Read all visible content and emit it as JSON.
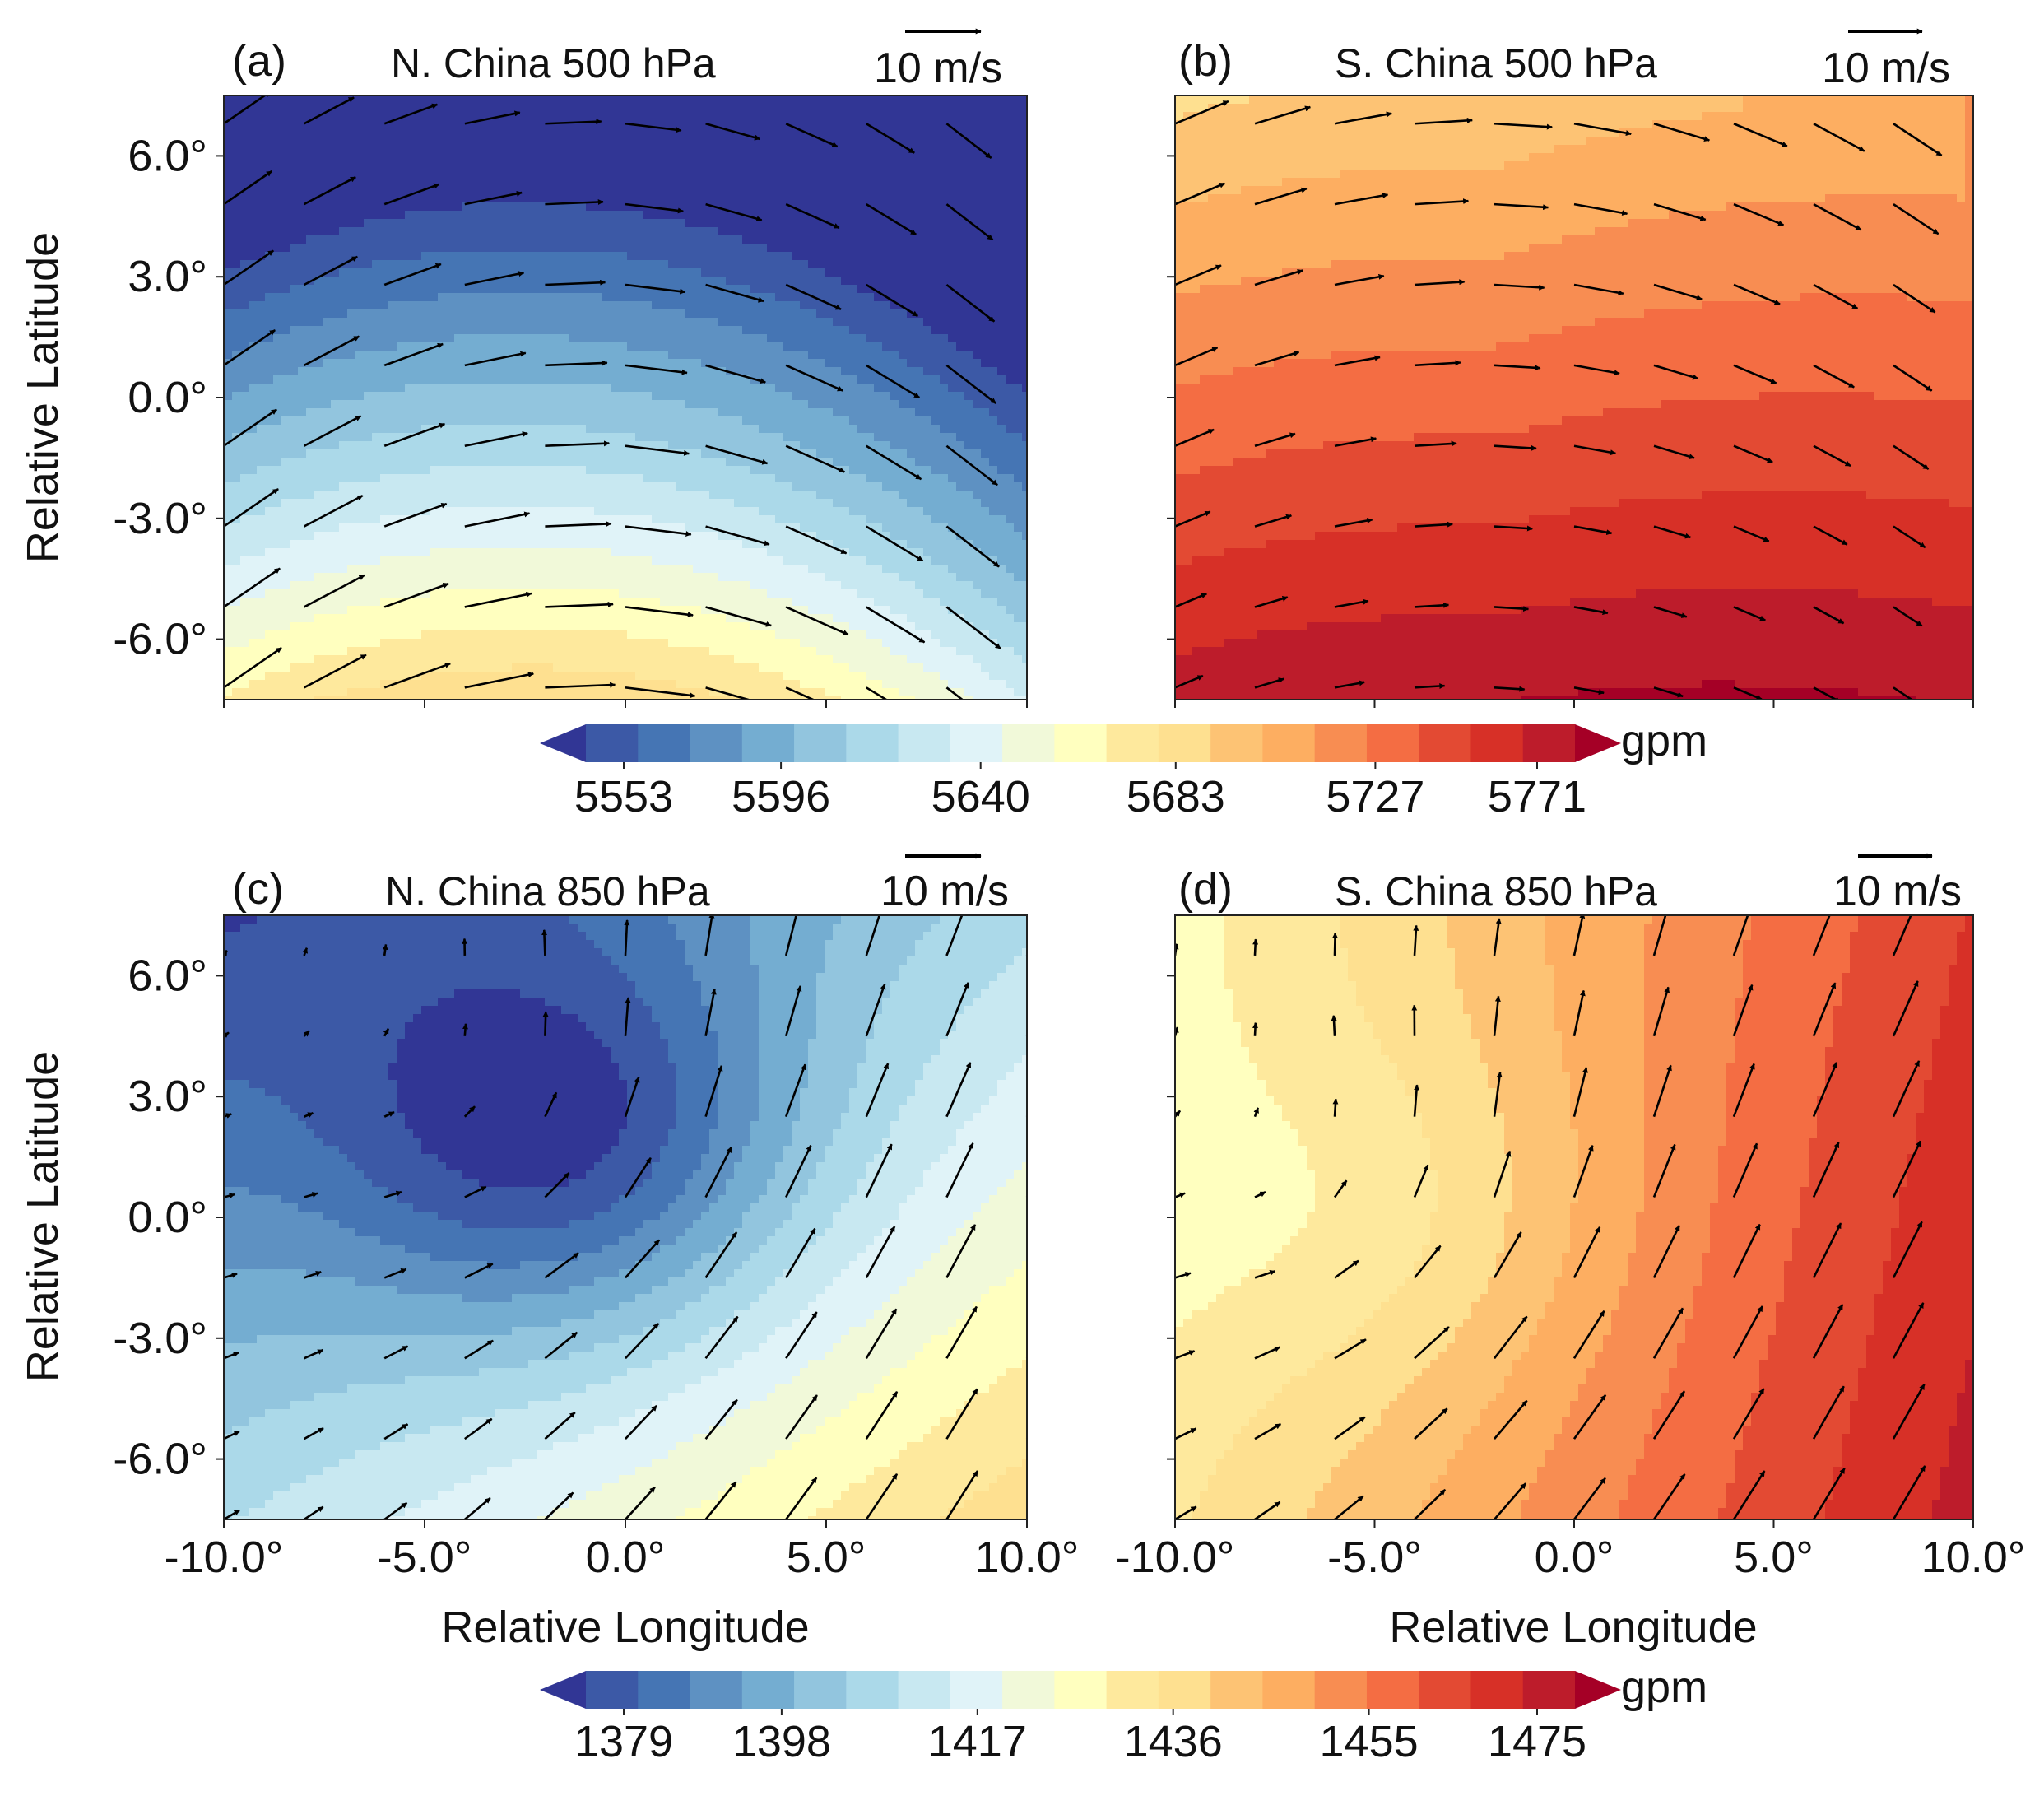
{
  "figure": {
    "ylabel": "Relative Latitude",
    "xlabel": "Relative Longitude",
    "degree_ticks_y": [
      "6.0°",
      "3.0°",
      "0.0°",
      "-3.0°",
      "-6.0°"
    ],
    "degree_ticks_x": [
      "-10.0°",
      "-5.0°",
      "0.0°",
      "5.0°",
      "10.0°"
    ]
  },
  "reference_vector": {
    "label": "10 m/s",
    "speed": 10
  },
  "colorbars": [
    {
      "id": "cb500",
      "unit": "gpm",
      "min": 5553,
      "max": 5771,
      "tick_values": [
        5553,
        5596,
        5640,
        5683,
        5727,
        5771
      ],
      "ticks": [
        "5553",
        "5596",
        "5640",
        "5683",
        "5727",
        "5771"
      ]
    },
    {
      "id": "cb850",
      "unit": "gpm",
      "min": 1379,
      "max": 1475,
      "tick_values": [
        1379,
        1398,
        1417,
        1436,
        1455,
        1475
      ],
      "ticks": [
        "1379",
        "1398",
        "1417",
        "1436",
        "1455",
        "1475"
      ]
    }
  ],
  "colormap": [
    "#313695",
    "#3c59a6",
    "#4575b4",
    "#5e91c2",
    "#74add1",
    "#92c5de",
    "#abd9e9",
    "#c8e8f1",
    "#e0f3f8",
    "#f1f9d9",
    "#ffffbf",
    "#fee99d",
    "#fee090",
    "#fdc374",
    "#fdae61",
    "#f88d52",
    "#f46d43",
    "#e34a33",
    "#d73027",
    "#bd1c2b",
    "#a50026"
  ],
  "chart_data": [
    {
      "id": "a",
      "type": "contourf+quiver",
      "letter": "(a)",
      "title": "N. China 500 hPa",
      "xlabel": "",
      "ylabel": "Relative Latitude",
      "xlim": [
        -10,
        10
      ],
      "ylim": [
        -7.5,
        7.5
      ],
      "xticks": [
        -10,
        -5,
        0,
        5,
        10
      ],
      "yticks": [
        6,
        3,
        0,
        -3,
        -6
      ],
      "colorbar": 0,
      "field": {
        "kind": "trough",
        "trough_lon": -1.5,
        "trough_lat": 6.5,
        "curvature": 0.03,
        "lat_scale": 15,
        "bottom_value": 5700,
        "top_value": 5551,
        "right_decrease": 18
      },
      "wind": {
        "lons": [
          -10,
          -8,
          -6,
          -4,
          -2,
          0,
          2,
          4,
          6,
          8,
          10
        ],
        "lats": [
          6.8,
          4.8,
          2.8,
          0.8,
          -1.2,
          -3.2,
          -5.2,
          -7.2
        ],
        "speed_top": 7.5,
        "speed_bottom": 9.5,
        "dir_factor": 0.45
      }
    },
    {
      "id": "b",
      "type": "contourf+quiver",
      "letter": "(b)",
      "title": "S. China 500 hPa",
      "xlabel": "",
      "ylabel": "",
      "xlim": [
        -10,
        10
      ],
      "ylim": [
        -7.5,
        7.5
      ],
      "xticks": [
        -10,
        -5,
        0,
        5,
        10
      ],
      "yticks": [
        6,
        3,
        0,
        -3,
        -6
      ],
      "colorbar": 0,
      "field": {
        "kind": "trough",
        "trough_lon": -3,
        "trough_lat": 7.5,
        "curvature": 0.02,
        "lat_scale": 15,
        "bottom_value": 5760,
        "top_value": 5690,
        "right_increase": 22
      },
      "wind": {
        "lons": [
          -10,
          -8,
          -6,
          -4,
          -2,
          0,
          2,
          4,
          6,
          8,
          10
        ],
        "lats": [
          6.8,
          4.8,
          2.8,
          0.8,
          -1.2,
          -3.2,
          -5.2,
          -7.2
        ],
        "speed_top": 8,
        "speed_bottom": 4,
        "dir_factor": 0.5
      }
    },
    {
      "id": "c",
      "type": "contourf+quiver",
      "letter": "(c)",
      "title": "N. China 850 hPa",
      "xlabel": "Relative Longitude",
      "ylabel": "Relative Latitude",
      "xlim": [
        -10,
        10
      ],
      "ylim": [
        -7.5,
        7.5
      ],
      "xticks": [
        -10,
        -5,
        0,
        5,
        10
      ],
      "yticks": [
        6,
        3,
        0,
        -3,
        -6
      ],
      "colorbar": 1,
      "field": {
        "kind": "low",
        "center_lon": -1.5,
        "center_lat": 1.8,
        "sx": 6,
        "sy": 5,
        "depth": 24,
        "base": 1405,
        "grad_lon": 1.3,
        "grad_lat": -1.8
      },
      "wind": {
        "lons": [
          -10,
          -8,
          -6,
          -4,
          -2,
          0,
          2,
          4,
          6,
          8,
          10
        ],
        "lats": [
          6.5,
          4.5,
          2.5,
          0.5,
          -1.5,
          -3.5,
          -5.5,
          -7.5
        ],
        "kind": "cyclone",
        "center_lon": -1.5,
        "center_lat": 1.8
      }
    },
    {
      "id": "d",
      "type": "contourf+quiver",
      "letter": "(d)",
      "title": "S. China 850 hPa",
      "xlabel": "Relative Longitude",
      "ylabel": "",
      "xlim": [
        -10,
        10
      ],
      "ylim": [
        -7.5,
        7.5
      ],
      "xticks": [
        -10,
        -5,
        0,
        5,
        10
      ],
      "yticks": [
        6,
        3,
        0,
        -3,
        -6
      ],
      "colorbar": 1,
      "field": {
        "kind": "low",
        "center_lon": -4.5,
        "center_lat": 0,
        "sx": 6,
        "sy": 5,
        "depth": 8,
        "base": 1440,
        "grad_lon": 1.7,
        "grad_lat": -0.4
      },
      "wind": {
        "lons": [
          -10,
          -8,
          -6,
          -4,
          -2,
          0,
          2,
          4,
          6,
          8,
          10
        ],
        "lats": [
          6.5,
          4.5,
          2.5,
          0.5,
          -1.5,
          -3.5,
          -5.5,
          -7.5
        ],
        "kind": "cyclone",
        "center_lon": -4.5,
        "center_lat": 0
      }
    }
  ]
}
